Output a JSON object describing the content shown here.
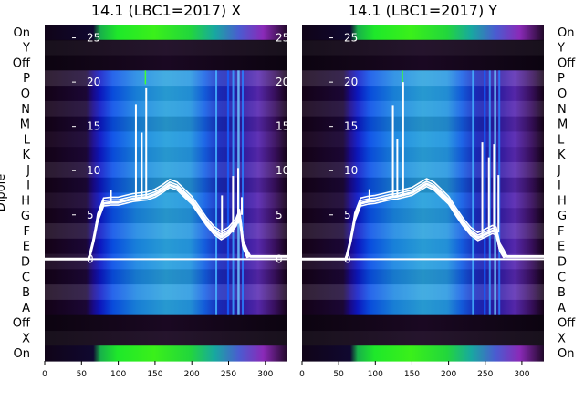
{
  "chart_data": [
    {
      "type": "heatmap",
      "title": "14.1 (LBC1=2017) X",
      "ylabel": "Dipole",
      "dipole_labels_top_to_bottom": [
        "On",
        "Y",
        "Off",
        "P",
        "O",
        "N",
        "M",
        "L",
        "K",
        "J",
        "I",
        "H",
        "G",
        "F",
        "E",
        "D",
        "C",
        "B",
        "A",
        "Off",
        "X",
        "On"
      ],
      "x_ticks": [
        0,
        50,
        100,
        150,
        200,
        250,
        300
      ],
      "x_range": [
        0,
        330
      ],
      "overlay_y_ticks": [
        0,
        5,
        10,
        15,
        20,
        25
      ],
      "overlay_y_range": [
        -11.5,
        26.5
      ],
      "overlay_curve": {
        "x": [
          0,
          60,
          66,
          72,
          80,
          90,
          100,
          110,
          120,
          130,
          140,
          150,
          160,
          170,
          180,
          190,
          200,
          210,
          220,
          230,
          240,
          250,
          260,
          265,
          270,
          275,
          280,
          300,
          330
        ],
        "y": [
          0,
          0,
          2,
          4.5,
          6.3,
          6.4,
          6.4,
          6.6,
          6.8,
          6.9,
          7.0,
          7.3,
          7.8,
          8.4,
          8.1,
          7.3,
          6.5,
          5.3,
          4.1,
          3.1,
          2.5,
          3.0,
          4.0,
          5.0,
          1.5,
          0.5,
          0.3,
          0.3,
          0.3
        ]
      },
      "overlay_spikes": [
        {
          "x": 90,
          "y": 7.8
        },
        {
          "x": 124,
          "y": 17.5
        },
        {
          "x": 132,
          "y": 14.3
        },
        {
          "x": 138,
          "y": 19.3
        },
        {
          "x": 241,
          "y": 7.2
        },
        {
          "x": 256,
          "y": 9.4
        },
        {
          "x": 263,
          "y": 10.3
        },
        {
          "x": 268,
          "y": 7.0
        }
      ]
    },
    {
      "type": "heatmap",
      "title": "14.1 (LBC1=2017) Y",
      "dipole_labels_top_to_bottom": [
        "On",
        "Y",
        "Off",
        "P",
        "O",
        "N",
        "M",
        "L",
        "K",
        "J",
        "I",
        "H",
        "G",
        "F",
        "E",
        "D",
        "C",
        "B",
        "A",
        "Off",
        "X",
        "On"
      ],
      "x_ticks": [
        0,
        50,
        100,
        150,
        200,
        250,
        300
      ],
      "x_range": [
        0,
        330
      ],
      "overlay_y_ticks": [
        0,
        5,
        10,
        15,
        20,
        25
      ],
      "overlay_y_range": [
        -11.5,
        26.5
      ],
      "overlay_curve": {
        "x": [
          0,
          60,
          66,
          72,
          80,
          90,
          100,
          110,
          120,
          130,
          140,
          150,
          160,
          170,
          180,
          190,
          200,
          210,
          220,
          230,
          240,
          250,
          260,
          265,
          270,
          275,
          280,
          300,
          330
        ],
        "y": [
          0,
          0,
          2,
          4.6,
          6.3,
          6.5,
          6.6,
          6.8,
          7.0,
          7.1,
          7.3,
          7.5,
          8.0,
          8.5,
          8.1,
          7.3,
          6.5,
          5.2,
          4.0,
          3.0,
          2.4,
          2.8,
          3.2,
          3.0,
          1.2,
          0.5,
          0.3,
          0.3,
          0.3
        ]
      },
      "overlay_spikes": [
        {
          "x": 92,
          "y": 7.9
        },
        {
          "x": 124,
          "y": 17.4
        },
        {
          "x": 130,
          "y": 13.6
        },
        {
          "x": 138,
          "y": 20.0
        },
        {
          "x": 246,
          "y": 13.2
        },
        {
          "x": 255,
          "y": 11.5
        },
        {
          "x": 262,
          "y": 13.0
        },
        {
          "x": 268,
          "y": 9.5
        }
      ]
    }
  ]
}
